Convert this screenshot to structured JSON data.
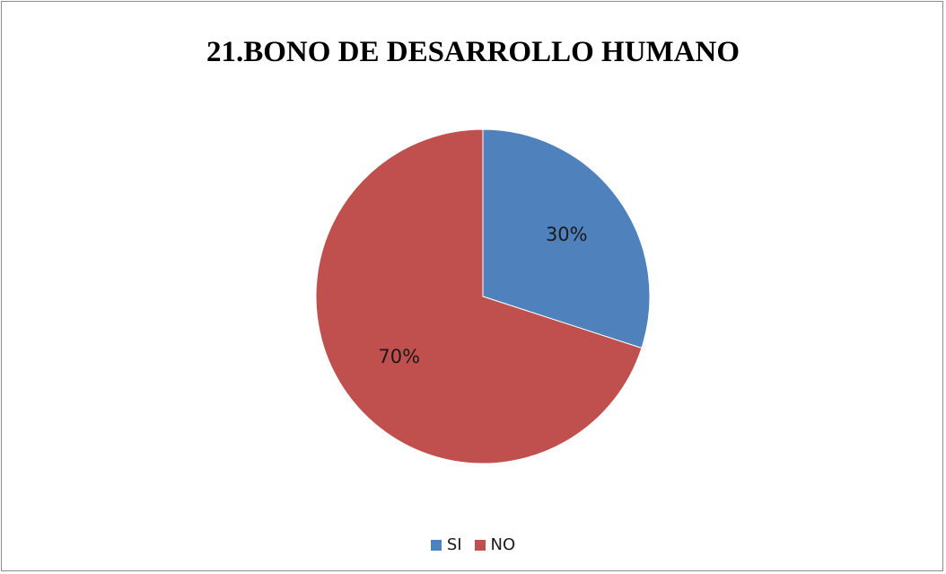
{
  "chart_data": {
    "type": "pie",
    "title": "21.BONO DE DESARROLLO HUMANO",
    "categories": [
      "SI",
      "NO"
    ],
    "values": [
      30,
      70
    ],
    "labels": [
      "30%",
      "70%"
    ],
    "colors": [
      "#4f81bd",
      "#c0504d"
    ],
    "legend_placement": "bottom"
  }
}
